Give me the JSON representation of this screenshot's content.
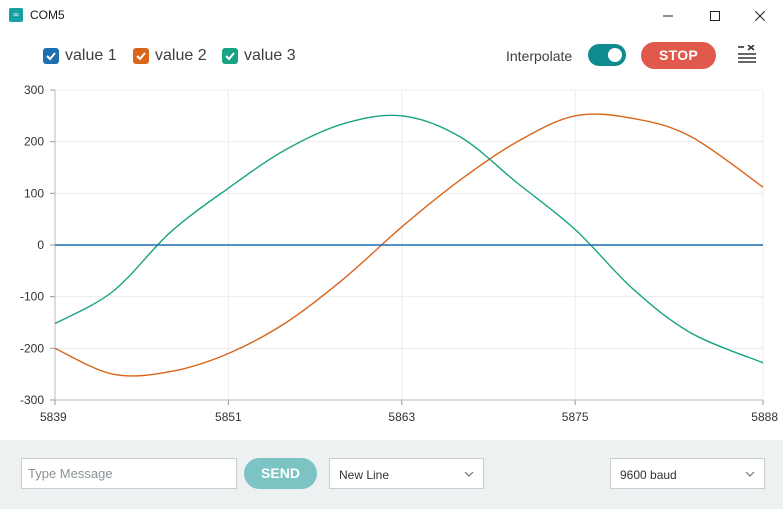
{
  "window": {
    "title": "COM5",
    "icon": "arduino-icon",
    "controls": [
      "minimize-icon",
      "maximize-icon",
      "close-icon"
    ]
  },
  "toolbar": {
    "legend": [
      {
        "label": "value 1",
        "color": "#1d6fb0",
        "checked": true
      },
      {
        "label": "value 2",
        "color": "#d9651a",
        "checked": true
      },
      {
        "label": "value 3",
        "color": "#19a385",
        "checked": true
      }
    ],
    "interpolate_label": "Interpolate",
    "interpolate_on": true,
    "stop_label": "STOP",
    "clear_icon": "clear-list-icon"
  },
  "chart_data": {
    "type": "line",
    "xlim": [
      5839,
      5888
    ],
    "ylim": [
      -300,
      300
    ],
    "x_ticks": [
      "5839",
      "5851",
      "5863",
      "5875",
      "5888"
    ],
    "y_ticks": [
      "300",
      "200",
      "100",
      "0",
      "-100",
      "-200",
      "-300"
    ],
    "grid": true,
    "series": [
      {
        "name": "value 1",
        "color": "#1d6fb0",
        "x": [
          5839,
          5888
        ],
        "y": [
          0,
          0
        ]
      },
      {
        "name": "value 2",
        "color": "#d9651a",
        "x": [
          5839,
          5843,
          5847,
          5851,
          5855,
          5859,
          5863,
          5867,
          5871,
          5875,
          5879,
          5883,
          5888
        ],
        "y": [
          -200,
          -250,
          -245,
          -210,
          -150,
          -65,
          35,
          125,
          200,
          250,
          245,
          210,
          112
        ]
      },
      {
        "name": "value 3",
        "color": "#19a385",
        "x": [
          5839,
          5843,
          5847,
          5851,
          5855,
          5859,
          5863,
          5867,
          5871,
          5875,
          5879,
          5883,
          5888
        ],
        "y": [
          -152,
          -90,
          25,
          110,
          185,
          235,
          250,
          210,
          120,
          30,
          -85,
          -170,
          -228
        ]
      }
    ]
  },
  "footer": {
    "message_placeholder": "Type Message",
    "send_label": "SEND",
    "line_ending": "New Line",
    "baud_rate": "9600 baud"
  }
}
